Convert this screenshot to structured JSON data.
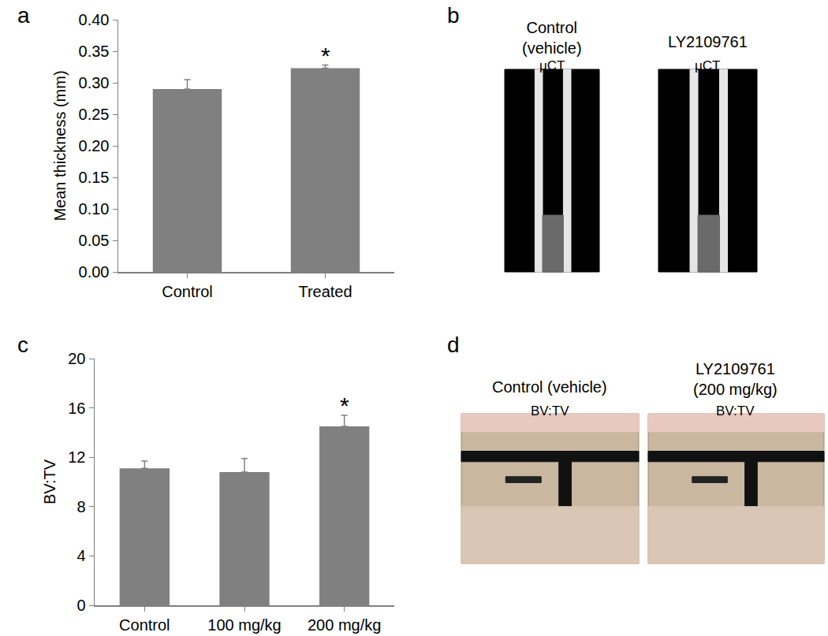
{
  "chart_data": [
    {
      "type": "bar",
      "panel_label": "a",
      "categories": [
        "Control",
        "Treated"
      ],
      "values": [
        0.29,
        0.323
      ],
      "errors": [
        0.015,
        0.005
      ],
      "color": "#808080",
      "y_label": "Mean thickness (mm)",
      "ylim": [
        0,
        0.4
      ],
      "yticks": [
        {
          "value": 0,
          "label": "0.00"
        },
        {
          "value": 0.05,
          "label": "0.05"
        },
        {
          "value": 0.1,
          "label": "0.10"
        },
        {
          "value": 0.15,
          "label": "0.15"
        },
        {
          "value": 0.2,
          "label": "0.20"
        },
        {
          "value": 0.25,
          "label": "0.25"
        },
        {
          "value": 0.3,
          "label": "0.30"
        },
        {
          "value": 0.35,
          "label": "0.35"
        },
        {
          "value": 0.4,
          "label": "0.40"
        }
      ],
      "grid": false,
      "annotations": [
        {
          "text": "*",
          "category": "Treated"
        }
      ]
    },
    {
      "type": "bar",
      "panel_label": "c",
      "categories": [
        "Control",
        "100 mg/kg",
        "200 mg/kg"
      ],
      "values": [
        11.1,
        10.8,
        14.5
      ],
      "errors": [
        0.6,
        1.1,
        0.9
      ],
      "color": "#808080",
      "y_label": "BV:TV",
      "ylim": [
        0,
        20
      ],
      "yticks": [
        0,
        4,
        8,
        12,
        16,
        20
      ],
      "grid": false,
      "annotations": [
        {
          "text": "*",
          "category": "200 mg/kg"
        }
      ]
    }
  ],
  "images": [
    {
      "panel_label": "b",
      "items": [
        {
          "title": [
            "Control",
            "(vehicle)"
          ],
          "subtitle": "μCT"
        },
        {
          "title": [
            "LY2109761"
          ],
          "subtitle": "μCT"
        }
      ]
    },
    {
      "panel_label": "d",
      "items": [
        {
          "title": [
            "Control (vehicle)"
          ],
          "subtitle": "BV:TV"
        },
        {
          "title": [
            "LY2109761",
            "(200 mg/kg)"
          ],
          "subtitle": "BV:TV"
        }
      ]
    }
  ]
}
